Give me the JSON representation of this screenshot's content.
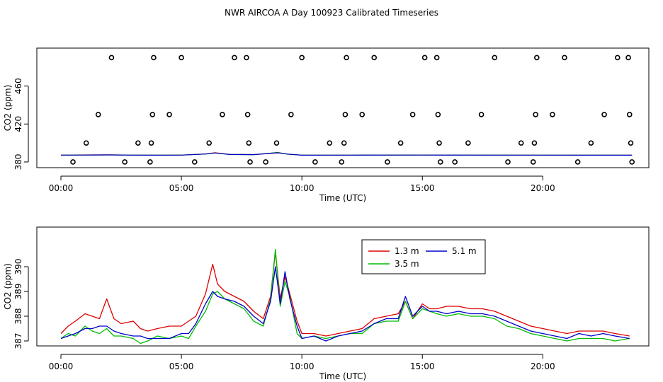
{
  "title": "NWR AIRCOA A  Day 100923  Calibrated Timeseries",
  "colors": {
    "h1": "#dd0000",
    "h3": "#00bb00",
    "h5": "#0000cc",
    "axis": "#000000"
  },
  "chart_data": [
    {
      "type": "scatter",
      "title": "NWR AIRCOA A  Day 100923  Calibrated Timeseries",
      "xlabel": "Time (UTC)",
      "ylabel": "CO2 (ppm)",
      "xlim": [
        -1.0,
        24.4
      ],
      "ylim": [
        374,
        500
      ],
      "xticks": [
        0,
        5,
        10,
        15,
        20
      ],
      "xtick_labels": [
        "00:00",
        "05:00",
        "10:00",
        "15:00",
        "20:00"
      ],
      "yticks": [
        380,
        420,
        460
      ],
      "ytick_labels": [
        "380",
        "420",
        "460"
      ],
      "reference_points": [
        [
          0.5,
          380
        ],
        [
          1.05,
          400
        ],
        [
          1.55,
          430
        ],
        [
          2.1,
          490
        ],
        [
          2.65,
          380
        ],
        [
          3.2,
          400
        ],
        [
          3.7,
          380
        ],
        [
          3.75,
          400
        ],
        [
          3.8,
          430
        ],
        [
          3.85,
          490
        ],
        [
          4.5,
          430
        ],
        [
          5.0,
          490
        ],
        [
          5.55,
          380
        ],
        [
          6.15,
          400
        ],
        [
          6.7,
          430
        ],
        [
          7.2,
          490
        ],
        [
          7.7,
          490
        ],
        [
          7.75,
          430
        ],
        [
          7.8,
          400
        ],
        [
          7.85,
          380
        ],
        [
          8.5,
          380
        ],
        [
          8.95,
          400
        ],
        [
          9.55,
          430
        ],
        [
          10.0,
          490
        ],
        [
          10.55,
          380
        ],
        [
          11.15,
          400
        ],
        [
          11.65,
          380
        ],
        [
          11.75,
          400
        ],
        [
          11.8,
          430
        ],
        [
          11.85,
          490
        ],
        [
          12.5,
          430
        ],
        [
          13.0,
          490
        ],
        [
          13.55,
          380
        ],
        [
          14.1,
          400
        ],
        [
          14.6,
          430
        ],
        [
          15.1,
          490
        ],
        [
          15.6,
          490
        ],
        [
          15.65,
          430
        ],
        [
          15.7,
          400
        ],
        [
          15.75,
          380
        ],
        [
          16.35,
          380
        ],
        [
          16.9,
          400
        ],
        [
          17.45,
          430
        ],
        [
          18.0,
          490
        ],
        [
          18.55,
          380
        ],
        [
          19.1,
          400
        ],
        [
          19.6,
          380
        ],
        [
          19.65,
          400
        ],
        [
          19.7,
          430
        ],
        [
          19.75,
          490
        ],
        [
          20.4,
          430
        ],
        [
          20.9,
          490
        ],
        [
          21.45,
          380
        ],
        [
          22.0,
          400
        ],
        [
          22.55,
          430
        ],
        [
          23.1,
          490
        ],
        [
          23.55,
          490
        ],
        [
          23.6,
          430
        ],
        [
          23.65,
          400
        ],
        [
          23.7,
          380
        ]
      ],
      "series": [
        {
          "name": "1.3 m",
          "color": "#dd0000",
          "x": [
            0,
            1,
            2,
            3,
            4,
            5,
            6,
            6.4,
            7,
            8,
            9,
            9.4,
            10,
            12,
            15,
            18,
            20,
            22,
            23.7
          ],
          "y": [
            387.3,
            387.4,
            387.5,
            387.3,
            387.2,
            387.3,
            388.5,
            389.8,
            388.0,
            387.8,
            389.5,
            388.3,
            387.2,
            387.2,
            387.3,
            387.3,
            387.2,
            387.2,
            387.1
          ]
        },
        {
          "name": "3.5 m",
          "color": "#00bb00",
          "x": [
            0,
            1,
            2,
            3,
            4,
            5,
            6,
            6.4,
            7,
            8,
            9,
            9.4,
            10,
            12,
            15,
            18,
            20,
            22,
            23.7
          ],
          "y": [
            387.2,
            387.3,
            387.4,
            387.3,
            387.2,
            387.3,
            388.3,
            389.4,
            387.9,
            387.7,
            390.0,
            388.2,
            387.2,
            387.2,
            387.3,
            387.3,
            387.2,
            387.2,
            387.1
          ]
        },
        {
          "name": "5.1 m",
          "color": "#0000cc",
          "x": [
            0,
            1,
            2,
            3,
            4,
            5,
            6,
            6.4,
            7,
            8,
            9,
            9.4,
            10,
            12,
            15,
            18,
            20,
            22,
            23.7
          ],
          "y": [
            387.2,
            387.3,
            387.4,
            387.2,
            387.1,
            387.2,
            388.4,
            389.5,
            387.9,
            387.7,
            389.8,
            388.3,
            387.1,
            387.2,
            387.3,
            387.2,
            387.2,
            387.1,
            387.1
          ]
        }
      ]
    },
    {
      "type": "line",
      "xlabel": "Time (UTC)",
      "ylabel": "CO2 (ppm)",
      "xlim": [
        -1.0,
        24.4
      ],
      "ylim": [
        386.8,
        391.6
      ],
      "xticks": [
        0,
        5,
        10,
        15,
        20
      ],
      "xtick_labels": [
        "00:00",
        "05:00",
        "10:00",
        "15:00",
        "20:00"
      ],
      "yticks": [
        387,
        388,
        389,
        390
      ],
      "ytick_labels": [
        "387",
        "388",
        "389",
        "390"
      ],
      "legend_position": "top-center",
      "series": [
        {
          "name": "1.3 m",
          "color": "#dd0000",
          "x": [
            0,
            0.3,
            0.6,
            1.0,
            1.3,
            1.6,
            1.9,
            2.2,
            2.5,
            3.0,
            3.3,
            3.6,
            4.0,
            4.5,
            5.0,
            5.3,
            5.6,
            6.0,
            6.3,
            6.5,
            6.8,
            7.2,
            7.6,
            8.0,
            8.4,
            8.7,
            8.9,
            9.1,
            9.3,
            9.5,
            9.8,
            10.0,
            10.5,
            11.0,
            11.5,
            12.0,
            12.5,
            13.0,
            13.5,
            14.0,
            14.3,
            14.6,
            15.0,
            15.3,
            15.6,
            16.0,
            16.5,
            17.0,
            17.5,
            18.0,
            18.5,
            19.0,
            19.5,
            20.0,
            20.5,
            21.0,
            21.5,
            22.0,
            22.5,
            23.0,
            23.6
          ],
          "y": [
            387.3,
            387.6,
            387.8,
            388.1,
            388.0,
            387.9,
            388.7,
            387.9,
            387.7,
            387.8,
            387.5,
            387.4,
            387.5,
            387.6,
            387.6,
            387.8,
            388.0,
            388.9,
            390.1,
            389.3,
            389.0,
            388.8,
            388.6,
            388.2,
            387.9,
            388.8,
            390.6,
            388.7,
            389.6,
            388.9,
            387.8,
            387.3,
            387.3,
            387.2,
            387.3,
            387.4,
            387.5,
            387.9,
            388.0,
            388.1,
            388.6,
            387.9,
            388.5,
            388.3,
            388.3,
            388.4,
            388.4,
            388.3,
            388.3,
            388.2,
            388.0,
            387.8,
            387.6,
            387.5,
            387.4,
            387.3,
            387.4,
            387.4,
            387.4,
            387.3,
            387.2
          ]
        },
        {
          "name": "3.5 m",
          "color": "#00bb00",
          "x": [
            0,
            0.3,
            0.6,
            1.0,
            1.3,
            1.6,
            1.9,
            2.2,
            2.5,
            3.0,
            3.3,
            3.6,
            4.0,
            4.5,
            5.0,
            5.3,
            5.6,
            6.0,
            6.3,
            6.5,
            6.8,
            7.2,
            7.6,
            8.0,
            8.4,
            8.7,
            8.9,
            9.1,
            9.3,
            9.5,
            9.8,
            10.0,
            10.5,
            11.0,
            11.5,
            12.0,
            12.5,
            13.0,
            13.5,
            14.0,
            14.3,
            14.6,
            15.0,
            15.3,
            15.6,
            16.0,
            16.5,
            17.0,
            17.5,
            18.0,
            18.5,
            19.0,
            19.5,
            20.0,
            20.5,
            21.0,
            21.5,
            22.0,
            22.5,
            23.0,
            23.6
          ],
          "y": [
            387.1,
            387.3,
            387.2,
            387.6,
            387.4,
            387.3,
            387.5,
            387.2,
            387.2,
            387.1,
            386.9,
            387.0,
            387.2,
            387.1,
            387.2,
            387.1,
            387.6,
            388.2,
            388.9,
            389.0,
            388.7,
            388.5,
            388.3,
            387.8,
            387.6,
            388.7,
            390.7,
            388.4,
            389.4,
            388.8,
            387.3,
            387.1,
            387.2,
            387.1,
            387.2,
            387.3,
            387.3,
            387.7,
            387.8,
            387.8,
            388.6,
            387.9,
            388.3,
            388.2,
            388.1,
            388.0,
            388.1,
            388.0,
            388.0,
            387.9,
            387.6,
            387.5,
            387.3,
            387.2,
            387.1,
            387.0,
            387.1,
            387.1,
            387.1,
            387.0,
            387.1
          ]
        },
        {
          "name": "5.1 m",
          "color": "#0000cc",
          "x": [
            0,
            0.3,
            0.6,
            1.0,
            1.3,
            1.6,
            1.9,
            2.2,
            2.5,
            3.0,
            3.3,
            3.6,
            4.0,
            4.5,
            5.0,
            5.3,
            5.6,
            6.0,
            6.3,
            6.5,
            6.8,
            7.2,
            7.6,
            8.0,
            8.4,
            8.7,
            8.9,
            9.1,
            9.3,
            9.5,
            9.8,
            10.0,
            10.5,
            11.0,
            11.5,
            12.0,
            12.5,
            13.0,
            13.5,
            14.0,
            14.3,
            14.6,
            15.0,
            15.3,
            15.6,
            16.0,
            16.5,
            17.0,
            17.5,
            18.0,
            18.5,
            19.0,
            19.5,
            20.0,
            20.5,
            21.0,
            21.5,
            22.0,
            22.5,
            23.0,
            23.6
          ],
          "y": [
            387.1,
            387.2,
            387.3,
            387.5,
            387.5,
            387.6,
            387.6,
            387.4,
            387.3,
            387.2,
            387.2,
            387.1,
            387.1,
            387.1,
            387.3,
            387.3,
            387.7,
            388.5,
            389.0,
            388.8,
            388.7,
            388.6,
            388.4,
            388.0,
            387.7,
            388.6,
            390.0,
            388.5,
            389.8,
            388.7,
            387.6,
            387.1,
            387.2,
            387.0,
            387.2,
            387.3,
            387.4,
            387.7,
            387.9,
            387.9,
            388.8,
            388.0,
            388.4,
            388.2,
            388.2,
            388.1,
            388.2,
            388.1,
            388.1,
            388.0,
            387.8,
            387.6,
            387.4,
            387.3,
            387.2,
            387.1,
            387.3,
            387.2,
            387.3,
            387.2,
            387.1
          ]
        }
      ]
    }
  ]
}
